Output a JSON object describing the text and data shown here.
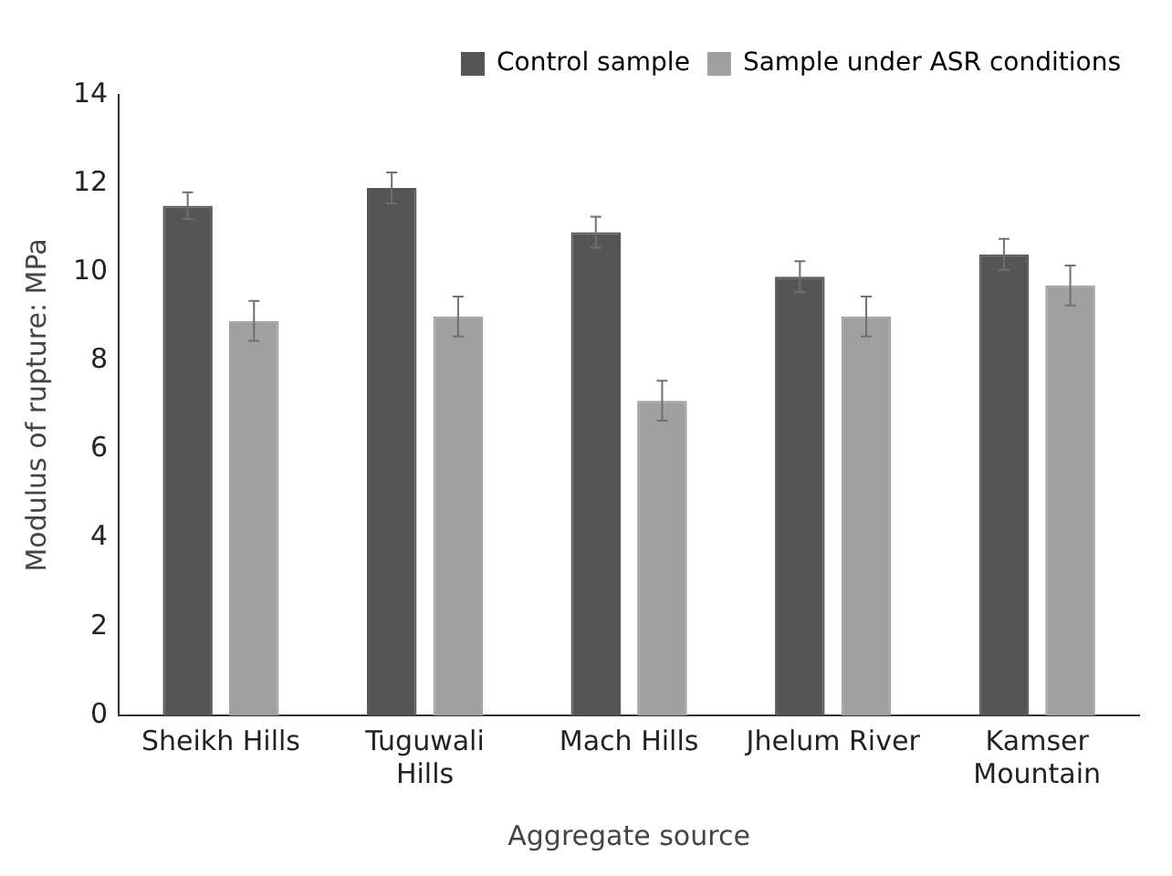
{
  "chart_data": {
    "type": "bar",
    "xlabel": "Aggregate source",
    "ylabel": "Modulus of rupture: MPa",
    "categories": [
      "Sheikh Hills",
      "Tuguwali Hills",
      "Mach Hills",
      "Jhelum River",
      "Kamser Mountain"
    ],
    "series": [
      {
        "name": "Control sample",
        "color": "#555555",
        "values": [
          11.5,
          11.9,
          10.9,
          9.9,
          10.4
        ],
        "errors": [
          0.3,
          0.35,
          0.35,
          0.35,
          0.35
        ]
      },
      {
        "name": "Sample under ASR conditions",
        "color": "#a0a0a0",
        "values": [
          8.9,
          9.0,
          7.1,
          9.0,
          9.7
        ],
        "errors": [
          0.45,
          0.45,
          0.45,
          0.45,
          0.45
        ]
      }
    ],
    "ylim": [
      0,
      14
    ],
    "yticks": [
      0,
      2,
      4,
      6,
      8,
      10,
      12,
      14
    ],
    "grid": false,
    "legend": "top right"
  }
}
